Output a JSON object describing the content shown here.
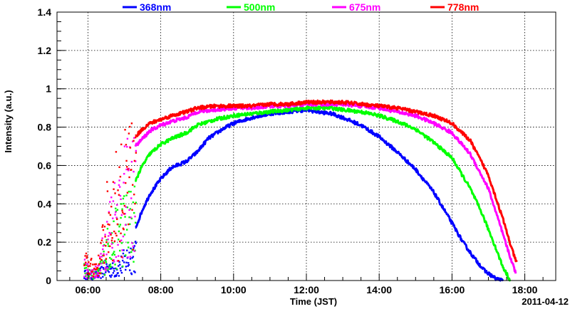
{
  "chart_data": {
    "type": "line",
    "title": "",
    "xlabel": "Time (JST)",
    "ylabel": "Intensity (a.u.)",
    "date_label": "2011-04-12",
    "xlim": [
      5.15,
      18.85
    ],
    "ylim": [
      0,
      1.4
    ],
    "grid": true,
    "legend_position": "top",
    "x_ticks": [
      {
        "value": 6,
        "label": "06:00"
      },
      {
        "value": 8,
        "label": "08:00"
      },
      {
        "value": 10,
        "label": "10:00"
      },
      {
        "value": 12,
        "label": "12:00"
      },
      {
        "value": 14,
        "label": "14:00"
      },
      {
        "value": 16,
        "label": "16:00"
      },
      {
        "value": 18,
        "label": "18:00"
      }
    ],
    "y_ticks": [
      {
        "value": 0,
        "label": "0"
      },
      {
        "value": 0.2,
        "label": "0.2"
      },
      {
        "value": 0.4,
        "label": "0.4"
      },
      {
        "value": 0.6,
        "label": "0.6"
      },
      {
        "value": 0.8,
        "label": "0.8"
      },
      {
        "value": 1,
        "label": "1"
      },
      {
        "value": 1.2,
        "label": "1.2"
      },
      {
        "value": 1.4,
        "label": "1.4"
      }
    ],
    "series": [
      {
        "name": "368nm",
        "color": "#0000ff",
        "x": [
          7.3,
          7.5,
          7.7,
          8.0,
          8.3,
          8.7,
          9.0,
          9.3,
          9.7,
          10.0,
          10.5,
          11.0,
          11.5,
          12.0,
          12.3,
          12.7,
          13.0,
          13.5,
          14.0,
          14.5,
          15.0,
          15.5,
          16.0,
          16.3,
          16.6,
          16.9,
          17.2,
          17.4
        ],
        "values": [
          0.27,
          0.37,
          0.45,
          0.53,
          0.59,
          0.62,
          0.67,
          0.74,
          0.79,
          0.82,
          0.85,
          0.87,
          0.88,
          0.89,
          0.88,
          0.87,
          0.85,
          0.81,
          0.75,
          0.67,
          0.58,
          0.46,
          0.3,
          0.2,
          0.12,
          0.05,
          0.01,
          0.0
        ]
      },
      {
        "name": "500nm",
        "color": "#00ff00",
        "x": [
          7.3,
          7.5,
          7.7,
          8.0,
          8.3,
          8.7,
          9.0,
          9.5,
          10.0,
          10.5,
          11.0,
          11.5,
          12.0,
          12.3,
          12.7,
          13.0,
          13.5,
          14.0,
          14.5,
          15.0,
          15.5,
          16.0,
          16.5,
          16.8,
          17.1,
          17.4,
          17.6
        ],
        "values": [
          0.52,
          0.6,
          0.66,
          0.71,
          0.74,
          0.77,
          0.81,
          0.84,
          0.86,
          0.87,
          0.88,
          0.89,
          0.9,
          0.9,
          0.9,
          0.89,
          0.88,
          0.86,
          0.83,
          0.79,
          0.72,
          0.64,
          0.48,
          0.36,
          0.22,
          0.07,
          0.0
        ]
      },
      {
        "name": "675nm",
        "color": "#ff00ff",
        "x": [
          7.3,
          7.5,
          7.7,
          8.0,
          8.3,
          8.7,
          9.0,
          9.5,
          10.0,
          10.5,
          11.0,
          11.5,
          12.0,
          12.5,
          13.0,
          13.5,
          14.0,
          14.5,
          15.0,
          15.5,
          16.0,
          16.5,
          17.0,
          17.3,
          17.55,
          17.75
        ],
        "values": [
          0.7,
          0.74,
          0.78,
          0.81,
          0.83,
          0.85,
          0.88,
          0.89,
          0.9,
          0.9,
          0.91,
          0.91,
          0.92,
          0.92,
          0.92,
          0.91,
          0.9,
          0.88,
          0.86,
          0.82,
          0.77,
          0.66,
          0.48,
          0.3,
          0.15,
          0.04
        ]
      },
      {
        "name": "778nm",
        "color": "#ff0000",
        "x": [
          7.3,
          7.5,
          7.7,
          8.0,
          8.3,
          8.7,
          9.0,
          9.5,
          10.0,
          10.5,
          11.0,
          11.5,
          12.0,
          12.5,
          13.0,
          13.5,
          14.0,
          14.5,
          15.0,
          15.5,
          16.0,
          16.5,
          17.0,
          17.4,
          17.65,
          17.78
        ],
        "values": [
          0.75,
          0.79,
          0.82,
          0.84,
          0.86,
          0.88,
          0.9,
          0.91,
          0.91,
          0.91,
          0.92,
          0.92,
          0.93,
          0.93,
          0.93,
          0.92,
          0.91,
          0.9,
          0.88,
          0.86,
          0.82,
          0.73,
          0.55,
          0.32,
          0.16,
          0.09
        ]
      }
    ],
    "early_scatter": {
      "x_start": 5.9,
      "x_end": 7.32,
      "levels": {
        "368nm": [
          0.05,
          0.03,
          0.05,
          0.1,
          0.08,
          0.12,
          0.18,
          0.22
        ],
        "500nm": [
          0.08,
          0.05,
          0.06,
          0.24,
          0.3,
          0.42,
          0.43,
          0.48
        ],
        "675nm": [
          0.1,
          0.06,
          0.08,
          0.35,
          0.5,
          0.58,
          0.66,
          0.7
        ],
        "778nm": [
          0.14,
          0.1,
          0.12,
          0.44,
          0.58,
          0.66,
          0.72,
          0.74
        ]
      }
    }
  }
}
